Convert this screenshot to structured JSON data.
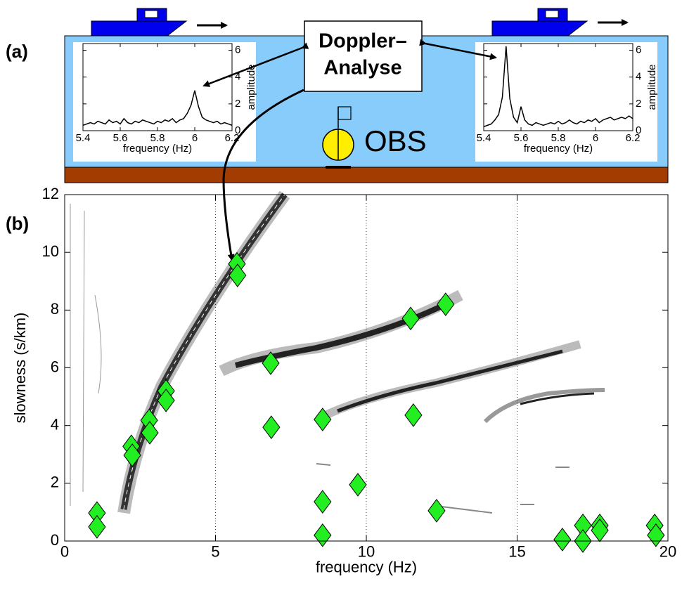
{
  "panel_a": {
    "label": "(a)",
    "box_lines": [
      "Doppler–",
      "Analyse"
    ],
    "obs_label": "OBS"
  },
  "panel_b": {
    "label": "(b)"
  },
  "chart_data": [
    {
      "type": "line",
      "ylabel": "amplitude",
      "xlabel": "frequency (Hz)",
      "xlim": [
        5.4,
        6.2
      ],
      "ylim": [
        0,
        6.5
      ],
      "xticks": [
        5.4,
        5.6,
        5.8,
        6,
        6.2
      ],
      "yticks": [
        0,
        2,
        4,
        6
      ],
      "x": [
        5.4,
        5.42,
        5.44,
        5.46,
        5.48,
        5.5,
        5.52,
        5.54,
        5.56,
        5.58,
        5.6,
        5.62,
        5.64,
        5.66,
        5.68,
        5.7,
        5.72,
        5.74,
        5.76,
        5.78,
        5.8,
        5.82,
        5.84,
        5.86,
        5.88,
        5.9,
        5.92,
        5.94,
        5.96,
        5.98,
        6,
        6.02,
        6.04,
        6.06,
        6.08,
        6.1,
        6.12,
        6.14,
        6.16,
        6.18,
        6.2
      ],
      "series": [
        {
          "color": "#000000",
          "values": [
            0.4,
            0.5,
            0.6,
            0.5,
            0.7,
            0.6,
            0.5,
            0.8,
            0.6,
            0.7,
            0.5,
            0.9,
            0.6,
            0.5,
            0.7,
            0.6,
            0.8,
            0.7,
            0.6,
            0.5,
            0.7,
            0.6,
            0.8,
            0.7,
            0.9,
            0.6,
            0.8,
            0.9,
            1.3,
            1.9,
            3.0,
            1.8,
            1.0,
            0.8,
            0.7,
            0.6,
            0.7,
            0.5,
            0.6,
            0.5,
            0.4
          ]
        }
      ]
    },
    {
      "type": "line",
      "ylabel": "amplitude",
      "xlabel": "frequency (Hz)",
      "xlim": [
        5.4,
        6.2
      ],
      "ylim": [
        0,
        6.5
      ],
      "xticks": [
        5.4,
        5.6,
        5.8,
        6,
        6.2
      ],
      "yticks": [
        0,
        2,
        4,
        6
      ],
      "x": [
        5.4,
        5.42,
        5.44,
        5.46,
        5.48,
        5.5,
        5.52,
        5.54,
        5.56,
        5.58,
        5.6,
        5.62,
        5.64,
        5.66,
        5.68,
        5.7,
        5.72,
        5.74,
        5.76,
        5.78,
        5.8,
        5.82,
        5.84,
        5.86,
        5.88,
        5.9,
        5.92,
        5.94,
        5.96,
        5.98,
        6,
        6.02,
        6.04,
        6.06,
        6.08,
        6.1,
        6.12,
        6.14,
        6.16,
        6.18,
        6.2
      ],
      "series": [
        {
          "color": "#000000",
          "values": [
            0.3,
            0.4,
            0.5,
            0.8,
            1.2,
            2.5,
            6.3,
            2.4,
            1.0,
            0.6,
            1.8,
            0.8,
            0.5,
            0.4,
            0.6,
            0.5,
            0.4,
            0.5,
            0.6,
            0.5,
            0.7,
            0.5,
            0.6,
            0.8,
            0.6,
            0.5,
            0.7,
            0.6,
            0.8,
            0.7,
            0.9,
            0.6,
            0.8,
            0.9,
            1.0,
            0.8,
            0.9,
            1.0,
            0.9,
            1.1,
            0.9
          ]
        }
      ]
    },
    {
      "type": "scatter",
      "xlabel": "frequency (Hz)",
      "ylabel": "slowness (s/km)",
      "xlim": [
        0,
        20
      ],
      "ylim": [
        0,
        12
      ],
      "xticks": [
        0,
        5,
        10,
        15,
        20
      ],
      "yticks": [
        0,
        2,
        4,
        6,
        8,
        10,
        12
      ],
      "grid": "x-dotted",
      "color": "#22ee22",
      "x": [
        1.07,
        1.07,
        2.21,
        2.24,
        2.8,
        2.82,
        3.36,
        3.36,
        5.71,
        5.73,
        6.83,
        6.85,
        8.55,
        8.55,
        8.55,
        9.72,
        11.47,
        11.56,
        12.33,
        12.63,
        16.5,
        17.18,
        17.18,
        17.74,
        17.74,
        19.56,
        19.6
      ],
      "values": [
        0.97,
        0.49,
        3.28,
        2.97,
        4.18,
        3.75,
        5.2,
        4.87,
        9.6,
        9.2,
        6.16,
        3.94,
        4.21,
        1.36,
        0.2,
        1.95,
        7.71,
        4.36,
        1.05,
        8.2,
        0.05,
        0.54,
        0.0,
        0.54,
        0.37,
        0.54,
        0.2
      ]
    }
  ]
}
